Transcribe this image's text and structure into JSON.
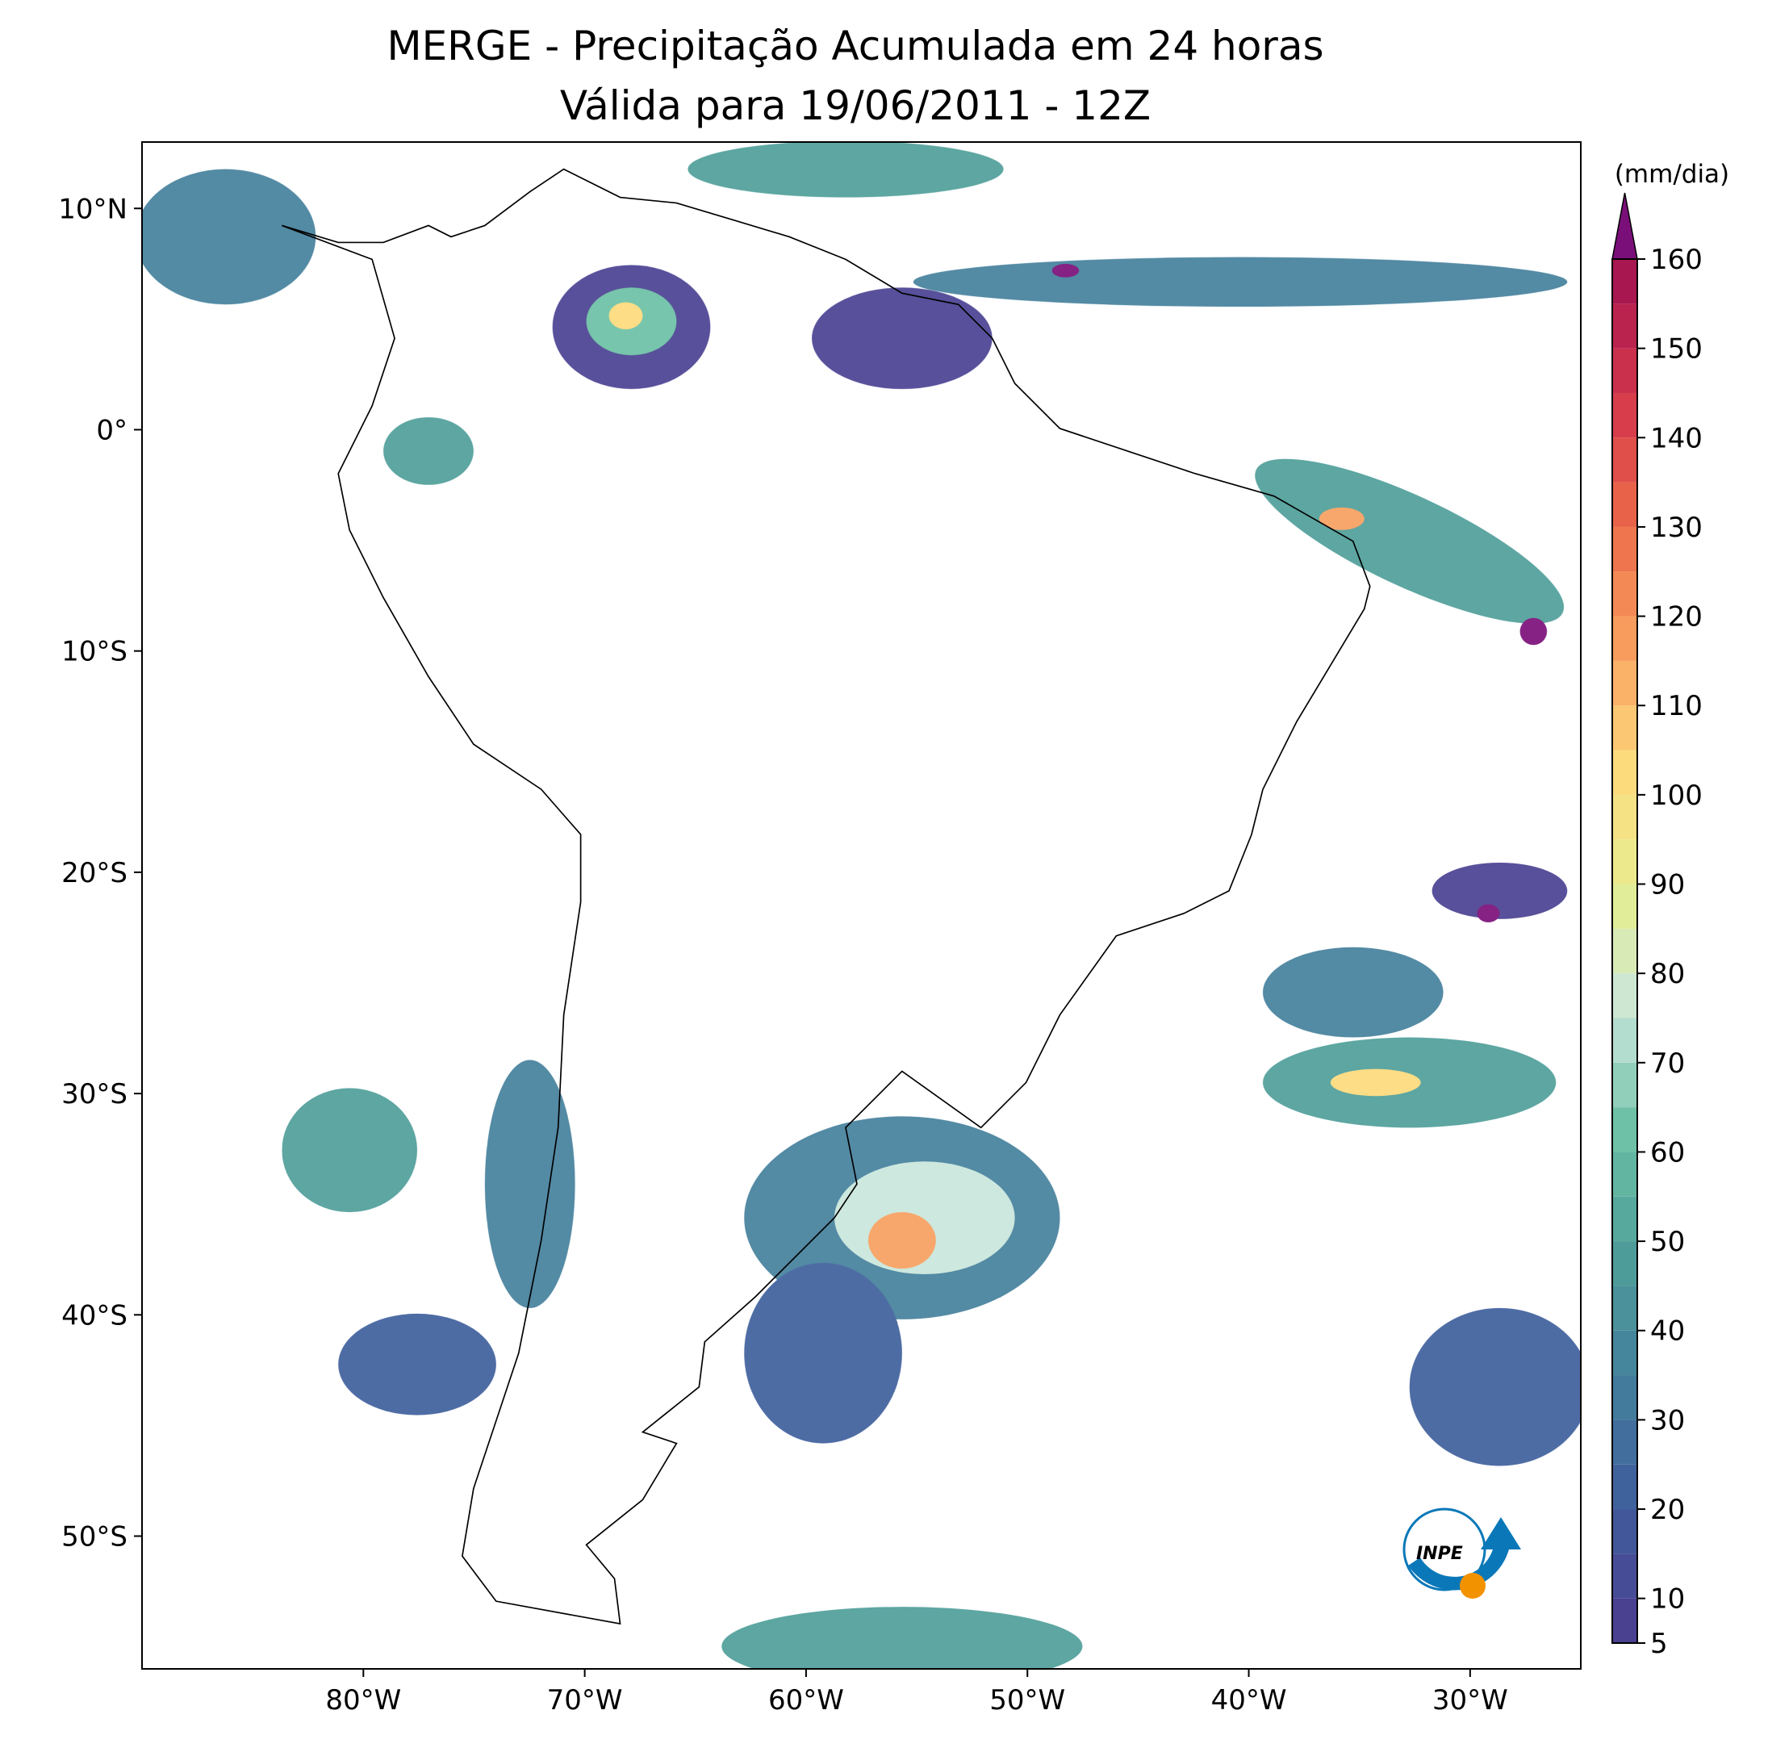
{
  "title": "MERGE - Precipitação Acumulada em 24 horas",
  "subtitle": "Válida para 19/06/2011 - 12Z",
  "map": {
    "xlim": [
      -90,
      -25
    ],
    "ylim": [
      -56,
      13
    ],
    "xticks": [
      {
        "value": -80,
        "label": "80°W"
      },
      {
        "value": -70,
        "label": "70°W"
      },
      {
        "value": -60,
        "label": "60°W"
      },
      {
        "value": -50,
        "label": "50°W"
      },
      {
        "value": -40,
        "label": "40°W"
      },
      {
        "value": -30,
        "label": "30°W"
      }
    ],
    "yticks": [
      {
        "value": 10,
        "label": "10°N"
      },
      {
        "value": 0,
        "label": "0°"
      },
      {
        "value": -10,
        "label": "10°S"
      },
      {
        "value": -20,
        "label": "20°S"
      },
      {
        "value": -30,
        "label": "30°S"
      },
      {
        "value": -40,
        "label": "40°S"
      },
      {
        "value": -50,
        "label": "50°S"
      }
    ]
  },
  "colorbar": {
    "label": "(mm/dia)",
    "lim": [
      5,
      160
    ],
    "ticks": [
      5,
      10,
      20,
      30,
      40,
      50,
      60,
      70,
      80,
      90,
      100,
      110,
      120,
      130,
      140,
      150,
      160
    ],
    "levels": [
      5,
      10,
      15,
      20,
      25,
      30,
      35,
      40,
      45,
      50,
      55,
      60,
      65,
      70,
      75,
      80,
      85,
      90,
      95,
      100,
      105,
      110,
      115,
      120,
      125,
      130,
      135,
      140,
      145,
      150,
      155,
      160
    ],
    "colors": [
      "#4a4191",
      "#3f5f9c",
      "#44809c",
      "#4f9e9a",
      "#6bc0a5",
      "#c9e6dc",
      "#e6ee8f",
      "#fdda7c",
      "#f8a05f",
      "#ec6a48",
      "#d6384b",
      "#a8174f"
    ],
    "extend_color": "#7b0f7a"
  },
  "logo_text": "INPE"
}
